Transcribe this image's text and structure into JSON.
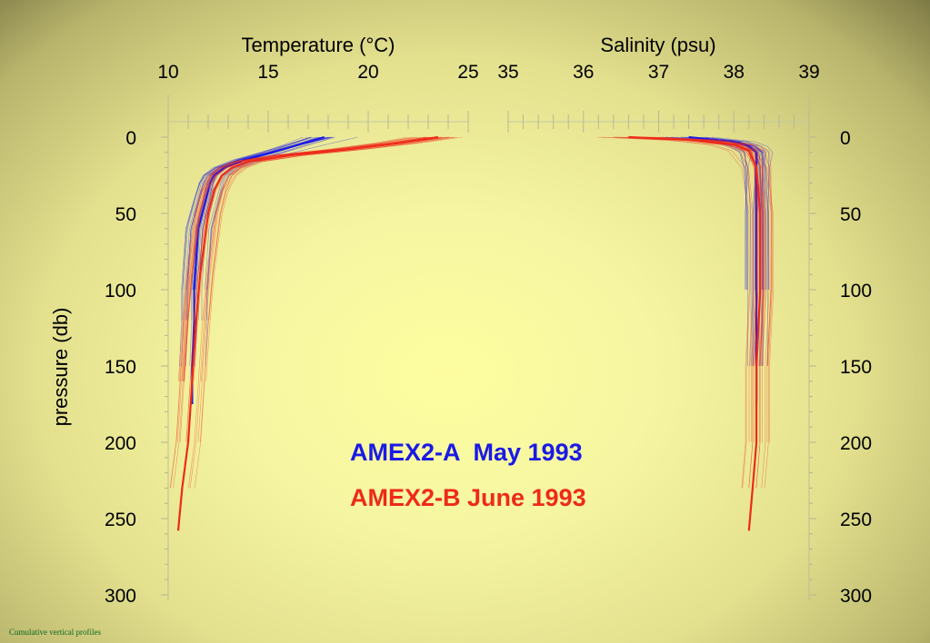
{
  "footer": {
    "caption": "Cumulative vertical profiles"
  },
  "chart_data": {
    "type": "line",
    "ylabel": "pressure (db)",
    "yticks_left": [
      "0",
      "50",
      "100",
      "150",
      "200",
      "250",
      "300"
    ],
    "yticks_right": [
      "0",
      "50",
      "100",
      "150",
      "200",
      "250",
      "300"
    ],
    "ylim": [
      300,
      0
    ],
    "panels": [
      {
        "name": "temperature",
        "xlabel": "Temperature (°C)",
        "xlim": [
          10,
          25
        ],
        "xticks": [
          "10",
          "15",
          "20",
          "25"
        ],
        "series": [
          {
            "name": "AMEX2-A  May 1993",
            "color": "#1a1ae6",
            "points": [
              [
                17.8,
                0
              ],
              [
                16.5,
                5
              ],
              [
                15.2,
                10
              ],
              [
                13.8,
                15
              ],
              [
                12.8,
                20
              ],
              [
                12.3,
                25
              ],
              [
                12.1,
                30
              ],
              [
                11.9,
                40
              ],
              [
                11.7,
                50
              ],
              [
                11.5,
                60
              ],
              [
                11.4,
                80
              ],
              [
                11.3,
                100
              ],
              [
                11.3,
                120
              ],
              [
                11.2,
                150
              ],
              [
                11.2,
                175
              ]
            ]
          },
          {
            "name": "AMEX2-B June 1993",
            "color": "#ee2a1a",
            "points": [
              [
                23.5,
                0
              ],
              [
                21.5,
                4
              ],
              [
                19.0,
                8
              ],
              [
                16.0,
                12
              ],
              [
                14.0,
                16
              ],
              [
                13.2,
                20
              ],
              [
                12.7,
                25
              ],
              [
                12.3,
                35
              ],
              [
                12.0,
                50
              ],
              [
                11.8,
                70
              ],
              [
                11.6,
                90
              ],
              [
                11.4,
                120
              ],
              [
                11.2,
                160
              ],
              [
                11.0,
                200
              ],
              [
                10.7,
                230
              ],
              [
                10.5,
                258
              ]
            ]
          }
        ]
      },
      {
        "name": "salinity",
        "xlabel": "Salinity (psu)",
        "xlim": [
          35,
          39
        ],
        "xticks": [
          "35",
          "36",
          "37",
          "38",
          "39"
        ],
        "series": [
          {
            "name": "AMEX2-A  May 1993",
            "color": "#1a1ae6",
            "points": [
              [
                37.4,
                0
              ],
              [
                38.0,
                3
              ],
              [
                38.2,
                6
              ],
              [
                38.3,
                10
              ],
              [
                38.3,
                20
              ],
              [
                38.3,
                50
              ],
              [
                38.3,
                100
              ],
              [
                38.3,
                150
              ],
              [
                38.3,
                175
              ]
            ]
          },
          {
            "name": "AMEX2-B June 1993",
            "color": "#ee2a1a",
            "points": [
              [
                36.6,
                0
              ],
              [
                37.5,
                2
              ],
              [
                38.0,
                5
              ],
              [
                38.2,
                9
              ],
              [
                38.3,
                20
              ],
              [
                38.35,
                50
              ],
              [
                38.35,
                100
              ],
              [
                38.3,
                150
              ],
              [
                38.3,
                200
              ],
              [
                38.25,
                230
              ],
              [
                38.2,
                258
              ]
            ]
          }
        ]
      }
    ],
    "legend": [
      {
        "text": "AMEX2-A  May 1993",
        "color": "#1a1ae6"
      },
      {
        "text": "AMEX2-B June 1993",
        "color": "#ee2a1a"
      }
    ],
    "legend_position": "center"
  }
}
